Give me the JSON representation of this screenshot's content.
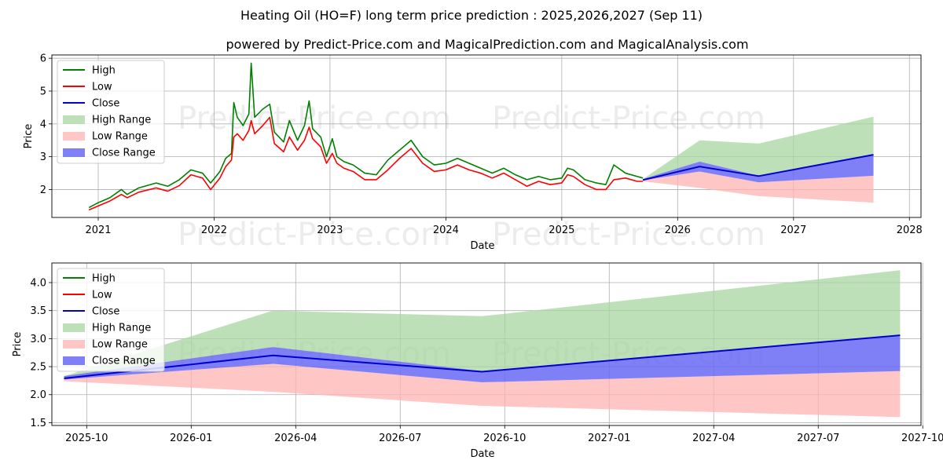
{
  "title": "Heating Oil (HO=F) long term price prediction : 2025,2026,2027 (Sep 11)",
  "subtitle": "powered by Predict-Price.com and MagicalPrediction.com and MagicalAnalysis.com",
  "watermark": "Predict-Price.com",
  "colors": {
    "high": "#008000",
    "low": "#ff0000",
    "close": "#0000cd",
    "high_range": "#a8d5a2",
    "low_range": "#ffb3b3",
    "close_range": "#6a6af5"
  },
  "legend": {
    "placement": "top-left",
    "entries": [
      "High",
      "Low",
      "Close",
      "High Range",
      "Low Range",
      "Close Range"
    ]
  },
  "chart_data": [
    {
      "type": "line",
      "xlabel": "Date",
      "ylabel": "Price",
      "xlim": [
        2020.6,
        2028.1
      ],
      "ylim": [
        1.15,
        6.1
      ],
      "grid": true,
      "x_ticks": [
        "2021",
        "2022",
        "2023",
        "2024",
        "2025",
        "2026",
        "2027",
        "2028"
      ],
      "y_ticks": [
        "2",
        "3",
        "4",
        "5",
        "6"
      ],
      "series": [
        {
          "name": "High",
          "x": [
            2020.92,
            2021.0,
            2021.1,
            2021.2,
            2021.25,
            2021.35,
            2021.5,
            2021.6,
            2021.7,
            2021.8,
            2021.9,
            2021.97,
            2022.05,
            2022.1,
            2022.15,
            2022.17,
            2022.2,
            2022.25,
            2022.3,
            2022.32,
            2022.35,
            2022.42,
            2022.48,
            2022.52,
            2022.6,
            2022.65,
            2022.72,
            2022.78,
            2022.82,
            2022.85,
            2022.92,
            2022.97,
            2023.02,
            2023.06,
            2023.12,
            2023.2,
            2023.3,
            2023.4,
            2023.5,
            2023.6,
            2023.7,
            2023.8,
            2023.9,
            2024.0,
            2024.1,
            2024.2,
            2024.3,
            2024.4,
            2024.5,
            2024.6,
            2024.7,
            2024.8,
            2024.9,
            2025.0,
            2025.05,
            2025.1,
            2025.2,
            2025.3,
            2025.38,
            2025.45,
            2025.55,
            2025.65,
            2025.7
          ],
          "y": [
            1.45,
            1.6,
            1.75,
            2.0,
            1.85,
            2.05,
            2.2,
            2.1,
            2.3,
            2.6,
            2.5,
            2.2,
            2.55,
            2.95,
            3.1,
            4.65,
            4.2,
            3.95,
            4.3,
            5.85,
            4.2,
            4.45,
            4.6,
            3.75,
            3.45,
            4.1,
            3.5,
            3.95,
            4.7,
            3.85,
            3.6,
            3.0,
            3.55,
            3.0,
            2.85,
            2.75,
            2.5,
            2.45,
            2.9,
            3.2,
            3.5,
            3.0,
            2.75,
            2.8,
            2.95,
            2.8,
            2.65,
            2.5,
            2.65,
            2.45,
            2.3,
            2.4,
            2.3,
            2.35,
            2.65,
            2.6,
            2.3,
            2.2,
            2.15,
            2.75,
            2.5,
            2.4,
            2.35
          ]
        },
        {
          "name": "Low",
          "x": [
            2020.92,
            2021.0,
            2021.1,
            2021.2,
            2021.25,
            2021.35,
            2021.5,
            2021.6,
            2021.7,
            2021.8,
            2021.9,
            2021.97,
            2022.05,
            2022.1,
            2022.15,
            2022.17,
            2022.2,
            2022.25,
            2022.3,
            2022.32,
            2022.35,
            2022.42,
            2022.48,
            2022.52,
            2022.6,
            2022.65,
            2022.72,
            2022.78,
            2022.82,
            2022.85,
            2022.92,
            2022.97,
            2023.02,
            2023.06,
            2023.12,
            2023.2,
            2023.3,
            2023.4,
            2023.5,
            2023.6,
            2023.7,
            2023.8,
            2023.9,
            2024.0,
            2024.1,
            2024.2,
            2024.3,
            2024.4,
            2024.5,
            2024.6,
            2024.7,
            2024.8,
            2024.9,
            2025.0,
            2025.05,
            2025.1,
            2025.2,
            2025.3,
            2025.38,
            2025.45,
            2025.55,
            2025.65,
            2025.7
          ],
          "y": [
            1.38,
            1.5,
            1.65,
            1.85,
            1.75,
            1.92,
            2.05,
            1.95,
            2.12,
            2.45,
            2.35,
            2.0,
            2.35,
            2.7,
            2.9,
            3.6,
            3.7,
            3.5,
            3.8,
            4.1,
            3.7,
            3.95,
            4.2,
            3.4,
            3.15,
            3.6,
            3.2,
            3.5,
            3.9,
            3.55,
            3.3,
            2.8,
            3.1,
            2.8,
            2.65,
            2.55,
            2.3,
            2.3,
            2.6,
            2.95,
            3.25,
            2.8,
            2.55,
            2.6,
            2.75,
            2.6,
            2.5,
            2.35,
            2.5,
            2.3,
            2.1,
            2.25,
            2.15,
            2.2,
            2.45,
            2.4,
            2.15,
            2.0,
            2.0,
            2.3,
            2.35,
            2.25,
            2.25
          ]
        },
        {
          "name": "Close",
          "x": [
            2025.7,
            2026.19,
            2026.7,
            2027.69
          ],
          "y": [
            2.29,
            2.7,
            2.41,
            3.06
          ]
        },
        {
          "name": "High Range",
          "x": [
            2025.7,
            2026.19,
            2026.7,
            2027.69
          ],
          "y_upper": [
            2.32,
            3.5,
            3.4,
            4.22
          ],
          "y_lower": [
            2.3,
            2.85,
            2.42,
            3.06
          ]
        },
        {
          "name": "Low Range",
          "x": [
            2025.7,
            2026.19,
            2026.7,
            2027.69
          ],
          "y_upper": [
            2.28,
            2.55,
            2.22,
            2.42
          ],
          "y_lower": [
            2.25,
            2.05,
            1.8,
            1.6
          ]
        },
        {
          "name": "Close Range",
          "x": [
            2025.7,
            2026.19,
            2026.7,
            2027.69
          ],
          "y_upper": [
            2.32,
            2.85,
            2.42,
            3.06
          ],
          "y_lower": [
            2.28,
            2.55,
            2.22,
            2.42
          ]
        }
      ]
    },
    {
      "type": "line",
      "xlabel": "Date",
      "ylabel": "Price",
      "xlim": [
        0,
        24.95
      ],
      "ylim": [
        1.45,
        4.35
      ],
      "grid": true,
      "x_tick_values": [
        1,
        4,
        7,
        10,
        13,
        16,
        19,
        22,
        25
      ],
      "x_ticks": [
        "2025-10",
        "2026-01",
        "2026-04",
        "2026-07",
        "2026-10",
        "2027-01",
        "2027-04",
        "2027-07",
        "2027-10"
      ],
      "y_ticks": [
        "1.5",
        "2.0",
        "2.5",
        "3.0",
        "3.5",
        "4.0"
      ],
      "series": [
        {
          "name": "Close",
          "x": [
            0.35,
            6.35,
            12.35,
            24.35
          ],
          "y": [
            2.29,
            2.7,
            2.41,
            3.06
          ]
        },
        {
          "name": "High Range",
          "x": [
            0.35,
            6.35,
            12.35,
            24.35
          ],
          "y_upper": [
            2.33,
            3.5,
            3.4,
            4.22
          ],
          "y_lower": [
            2.31,
            2.85,
            2.42,
            3.06
          ]
        },
        {
          "name": "Low Range",
          "x": [
            0.35,
            6.35,
            12.35,
            24.35
          ],
          "y_upper": [
            2.27,
            2.55,
            2.22,
            2.42
          ],
          "y_lower": [
            2.24,
            2.05,
            1.8,
            1.6
          ]
        },
        {
          "name": "Close Range",
          "x": [
            0.35,
            6.35,
            12.35,
            24.35
          ],
          "y_upper": [
            2.33,
            2.85,
            2.42,
            3.06
          ],
          "y_lower": [
            2.27,
            2.55,
            2.22,
            2.42
          ]
        }
      ]
    }
  ]
}
